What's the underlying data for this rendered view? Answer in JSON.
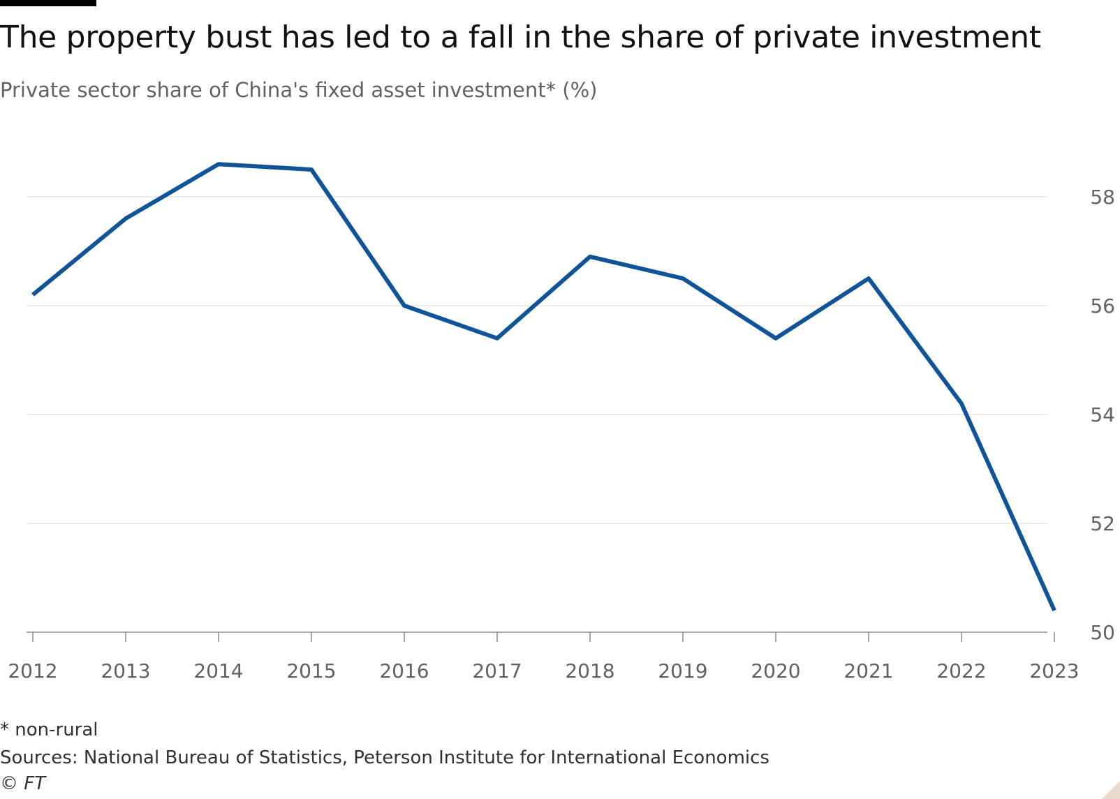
{
  "title": "The property bust has led to a fall in the share of private investment",
  "subtitle": "Private sector share of China's fixed asset investment* (%)",
  "footnote": "* non-rural",
  "sources": "Sources: National Bureau of Statistics, Peterson Institute for International Economics",
  "copyright": "© FT",
  "chart_data": {
    "type": "line",
    "x": [
      "2012",
      "2013",
      "2014",
      "2015",
      "2016",
      "2017",
      "2018",
      "2019",
      "2020",
      "2021",
      "2022",
      "2023"
    ],
    "series": [
      {
        "values": [
          56.2,
          57.6,
          58.6,
          58.5,
          56.0,
          55.4,
          56.9,
          56.5,
          55.4,
          56.5,
          54.2,
          50.4
        ],
        "color": "#0f5499"
      }
    ],
    "yticks": [
      50,
      52,
      54,
      56,
      58
    ],
    "ylim": [
      50,
      59
    ],
    "y_axis_side": "right",
    "grid": true,
    "gridline_color": "#e6dfd8",
    "legend": "none"
  }
}
